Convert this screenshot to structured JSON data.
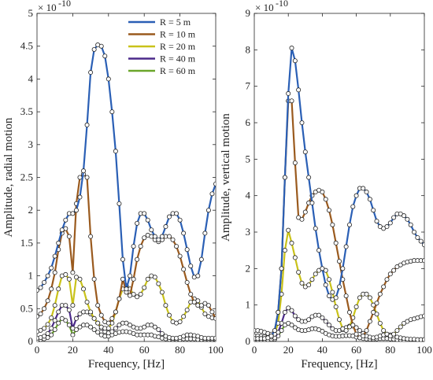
{
  "chart_data": [
    {
      "type": "line",
      "xlabel": "Frequency, [Hz]",
      "ylabel": "Amplitude, radial motion",
      "scale_label": "× 10",
      "scale_exponent": "-10",
      "xlim": [
        0,
        100
      ],
      "ylim": [
        0,
        5
      ],
      "xticks": [
        0,
        20,
        40,
        60,
        80,
        100
      ],
      "yticks": [
        0,
        0.5,
        1,
        1.5,
        2,
        2.5,
        3,
        3.5,
        4,
        4.5,
        5
      ],
      "ytick_labels": [
        "0",
        "0.5",
        "1",
        "1.5",
        "2",
        "2.5",
        "3",
        "3.5",
        "4",
        "4.5",
        "5"
      ],
      "legend_position": "top-right",
      "series": [
        {
          "name": "R = 5 m",
          "color": "#2a5fb5",
          "x": [
            0,
            2,
            4,
            6,
            8,
            10,
            12,
            14,
            16,
            18,
            20,
            22,
            24,
            26,
            28,
            30,
            32,
            34,
            36,
            38,
            40,
            42,
            44,
            46,
            48,
            50,
            52,
            54,
            56,
            58,
            60,
            62,
            64,
            66,
            68,
            70,
            72,
            74,
            76,
            78,
            80,
            82,
            84,
            86,
            88,
            90,
            92,
            94,
            96,
            98,
            100
          ],
          "y": [
            0.78,
            0.82,
            0.9,
            1.0,
            1.12,
            1.3,
            1.5,
            1.7,
            1.85,
            1.95,
            1.95,
            2.0,
            2.2,
            2.6,
            3.3,
            4.1,
            4.45,
            4.52,
            4.5,
            4.35,
            4.0,
            3.5,
            2.9,
            2.1,
            1.25,
            0.8,
            1.0,
            1.45,
            1.8,
            1.95,
            1.95,
            1.85,
            1.7,
            1.6,
            1.55,
            1.6,
            1.75,
            1.9,
            1.95,
            1.95,
            1.85,
            1.65,
            1.4,
            1.15,
            0.98,
            1.0,
            1.25,
            1.65,
            2.0,
            2.25,
            2.4
          ]
        },
        {
          "name": "R = 10 m",
          "color": "#9a5a1e",
          "x": [
            0,
            2,
            4,
            6,
            8,
            10,
            12,
            14,
            16,
            18,
            20,
            22,
            24,
            26,
            28,
            30,
            32,
            34,
            36,
            38,
            40,
            42,
            44,
            46,
            48,
            50,
            52,
            54,
            56,
            58,
            60,
            62,
            64,
            66,
            68,
            70,
            72,
            74,
            76,
            78,
            80,
            82,
            84,
            86,
            88,
            90,
            92,
            94,
            96,
            98,
            100
          ],
          "y": [
            0.38,
            0.42,
            0.5,
            0.62,
            0.8,
            1.05,
            1.4,
            1.65,
            1.72,
            1.6,
            1.05,
            2.1,
            2.5,
            2.55,
            2.5,
            1.6,
            0.95,
            0.55,
            0.4,
            0.3,
            0.28,
            0.35,
            0.45,
            0.65,
            0.95,
            0.75,
            0.7,
            0.95,
            1.25,
            1.45,
            1.58,
            1.62,
            1.6,
            1.55,
            1.52,
            1.55,
            1.6,
            1.6,
            1.55,
            1.45,
            1.3,
            1.1,
            0.9,
            0.72,
            0.6,
            0.55,
            0.55,
            0.58,
            0.55,
            0.45,
            0.35
          ]
        },
        {
          "name": "R = 20 m",
          "color": "#c9c21a",
          "x": [
            0,
            2,
            4,
            6,
            8,
            10,
            12,
            14,
            16,
            18,
            20,
            22,
            24,
            26,
            28,
            30,
            32,
            34,
            36,
            38,
            40,
            42,
            44,
            46,
            48,
            50,
            52,
            54,
            56,
            58,
            60,
            62,
            64,
            66,
            68,
            70,
            72,
            74,
            76,
            78,
            80,
            82,
            84,
            86,
            88,
            90,
            92,
            94,
            96,
            98,
            100
          ],
          "y": [
            0.15,
            0.17,
            0.2,
            0.26,
            0.36,
            0.55,
            0.8,
            1.0,
            1.02,
            0.95,
            0.55,
            0.98,
            0.95,
            0.8,
            0.6,
            0.45,
            0.35,
            0.28,
            0.22,
            0.2,
            0.2,
            0.28,
            0.45,
            0.65,
            0.8,
            0.85,
            0.8,
            0.72,
            0.68,
            0.72,
            0.82,
            0.95,
            1.0,
            0.98,
            0.88,
            0.75,
            0.55,
            0.4,
            0.3,
            0.28,
            0.3,
            0.38,
            0.48,
            0.6,
            0.65,
            0.62,
            0.52,
            0.42,
            0.38,
            0.36,
            0.38
          ]
        },
        {
          "name": "R = 40 m",
          "color": "#4b2a8a",
          "x": [
            0,
            2,
            4,
            6,
            8,
            10,
            12,
            14,
            16,
            18,
            20,
            22,
            24,
            26,
            28,
            30,
            32,
            34,
            36,
            38,
            40,
            42,
            44,
            46,
            48,
            50,
            52,
            54,
            56,
            58,
            60,
            62,
            64,
            66,
            68,
            70,
            72,
            74,
            76,
            78,
            80,
            82,
            84,
            86,
            88,
            90,
            92,
            94,
            96,
            98,
            100
          ],
          "y": [
            0.05,
            0.06,
            0.08,
            0.12,
            0.2,
            0.32,
            0.45,
            0.55,
            0.55,
            0.48,
            0.2,
            0.35,
            0.42,
            0.45,
            0.45,
            0.42,
            0.35,
            0.28,
            0.2,
            0.15,
            0.13,
            0.15,
            0.2,
            0.25,
            0.28,
            0.28,
            0.25,
            0.22,
            0.2,
            0.2,
            0.22,
            0.25,
            0.25,
            0.22,
            0.18,
            0.12,
            0.08,
            0.06,
            0.05,
            0.05,
            0.06,
            0.08,
            0.1,
            0.1,
            0.09,
            0.08,
            0.06,
            0.05,
            0.05,
            0.05,
            0.05
          ]
        },
        {
          "name": "R = 60 m",
          "color": "#6aa62a",
          "x": [
            0,
            2,
            4,
            6,
            8,
            10,
            12,
            14,
            16,
            18,
            20,
            22,
            24,
            26,
            28,
            30,
            32,
            34,
            36,
            38,
            40,
            42,
            44,
            46,
            48,
            50,
            52,
            54,
            56,
            58,
            60,
            62,
            64,
            66,
            68,
            70,
            72,
            74,
            76,
            78,
            80,
            82,
            84,
            86,
            88,
            90,
            92,
            94,
            96,
            98,
            100
          ],
          "y": [
            0.02,
            0.03,
            0.04,
            0.06,
            0.1,
            0.18,
            0.28,
            0.35,
            0.32,
            0.25,
            0.1,
            0.18,
            0.22,
            0.25,
            0.25,
            0.22,
            0.18,
            0.14,
            0.1,
            0.08,
            0.08,
            0.1,
            0.12,
            0.14,
            0.15,
            0.15,
            0.14,
            0.12,
            0.1,
            0.1,
            0.1,
            0.1,
            0.1,
            0.08,
            0.07,
            0.05,
            0.04,
            0.03,
            0.03,
            0.03,
            0.03,
            0.04,
            0.04,
            0.04,
            0.04,
            0.03,
            0.03,
            0.03,
            0.03,
            0.03,
            0.03
          ]
        }
      ]
    },
    {
      "type": "line",
      "xlabel": "Frequency, [Hz]",
      "ylabel": "Amplitude, vertical motion",
      "scale_label": "× 10",
      "scale_exponent": "-10",
      "xlim": [
        0,
        100
      ],
      "ylim": [
        0,
        9
      ],
      "xticks": [
        0,
        20,
        40,
        60,
        80,
        100
      ],
      "yticks": [
        0,
        1,
        2,
        3,
        4,
        5,
        6,
        7,
        8,
        9
      ],
      "ytick_labels": [
        "0",
        "1",
        "2",
        "3",
        "4",
        "5",
        "6",
        "7",
        "8",
        "9"
      ],
      "series": [
        {
          "name": "R = 5 m",
          "color": "#2a5fb5",
          "x": [
            0,
            2,
            4,
            6,
            8,
            10,
            12,
            14,
            16,
            18,
            20,
            22,
            24,
            26,
            28,
            30,
            32,
            34,
            36,
            38,
            40,
            42,
            44,
            46,
            48,
            50,
            52,
            54,
            56,
            58,
            60,
            62,
            64,
            66,
            68,
            70,
            72,
            74,
            76,
            78,
            80,
            82,
            84,
            86,
            88,
            90,
            92,
            94,
            96,
            98,
            100
          ],
          "y": [
            0.08,
            0.08,
            0.08,
            0.08,
            0.1,
            0.15,
            0.3,
            0.8,
            2.0,
            4.5,
            6.8,
            8.05,
            7.7,
            6.9,
            6.0,
            5.2,
            4.5,
            3.8,
            3.1,
            2.5,
            2.0,
            1.55,
            1.25,
            1.15,
            1.2,
            1.5,
            2.0,
            2.6,
            3.2,
            3.7,
            4.0,
            4.2,
            4.2,
            4.1,
            3.9,
            3.6,
            3.3,
            3.15,
            3.1,
            3.15,
            3.25,
            3.4,
            3.5,
            3.5,
            3.45,
            3.35,
            3.2,
            3.0,
            2.85,
            2.75,
            2.65
          ]
        },
        {
          "name": "R = 10 m",
          "color": "#9a5a1e",
          "x": [
            0,
            2,
            4,
            6,
            8,
            10,
            12,
            14,
            16,
            18,
            20,
            22,
            24,
            26,
            28,
            30,
            32,
            34,
            36,
            38,
            40,
            42,
            44,
            46,
            48,
            50,
            52,
            54,
            56,
            58,
            60,
            62,
            64,
            66,
            68,
            70,
            72,
            74,
            76,
            78,
            80,
            82,
            84,
            86,
            88,
            90,
            92,
            94,
            96,
            98,
            100
          ],
          "y": [
            0.3,
            0.3,
            0.28,
            0.25,
            0.22,
            0.2,
            0.3,
            0.8,
            2.0,
            4.5,
            6.6,
            6.6,
            4.9,
            3.4,
            3.35,
            3.55,
            3.8,
            4.0,
            4.1,
            4.15,
            4.1,
            3.9,
            3.6,
            3.2,
            2.7,
            2.2,
            1.7,
            1.25,
            0.8,
            0.45,
            0.2,
            0.1,
            0.15,
            0.3,
            0.55,
            0.8,
            1.05,
            1.3,
            1.5,
            1.7,
            1.85,
            1.95,
            2.05,
            2.1,
            2.15,
            2.18,
            2.2,
            2.22,
            2.22,
            2.22,
            2.22
          ]
        },
        {
          "name": "R = 20 m",
          "color": "#c9c21a",
          "x": [
            0,
            2,
            4,
            6,
            8,
            10,
            12,
            14,
            16,
            18,
            20,
            22,
            24,
            26,
            28,
            30,
            32,
            34,
            36,
            38,
            40,
            42,
            44,
            46,
            48,
            50,
            52,
            54,
            56,
            58,
            60,
            62,
            64,
            66,
            68,
            70,
            72,
            74,
            76,
            78,
            80,
            82,
            84,
            86,
            88,
            90,
            92,
            94,
            96,
            98,
            100
          ],
          "y": [
            0.15,
            0.15,
            0.14,
            0.13,
            0.12,
            0.12,
            0.2,
            0.5,
            1.3,
            2.5,
            3.05,
            2.7,
            2.3,
            1.9,
            1.6,
            1.5,
            1.55,
            1.7,
            1.85,
            1.95,
            2.0,
            1.95,
            1.7,
            1.35,
            0.95,
            0.6,
            0.35,
            0.3,
            0.4,
            0.65,
            0.95,
            1.2,
            1.3,
            1.3,
            1.2,
            1.0,
            0.75,
            0.5,
            0.3,
            0.2,
            0.15,
            0.2,
            0.3,
            0.4,
            0.5,
            0.55,
            0.6,
            0.62,
            0.65,
            0.68,
            0.7
          ]
        },
        {
          "name": "R = 40 m",
          "color": "#4b2a8a",
          "x": [
            0,
            2,
            4,
            6,
            8,
            10,
            12,
            14,
            16,
            18,
            20,
            22,
            24,
            26,
            28,
            30,
            32,
            34,
            36,
            38,
            40,
            42,
            44,
            46,
            48,
            50,
            52,
            54,
            56,
            58,
            60,
            62,
            64,
            66,
            68,
            70,
            72,
            74,
            76,
            78,
            80,
            82,
            84,
            86,
            88,
            90,
            92,
            94,
            96,
            98,
            100
          ],
          "y": [
            0.05,
            0.05,
            0.05,
            0.05,
            0.05,
            0.06,
            0.1,
            0.25,
            0.5,
            0.8,
            0.92,
            0.85,
            0.7,
            0.6,
            0.55,
            0.55,
            0.6,
            0.68,
            0.72,
            0.72,
            0.65,
            0.55,
            0.45,
            0.35,
            0.3,
            0.3,
            0.32,
            0.38,
            0.42,
            0.42,
            0.38,
            0.3,
            0.22,
            0.15,
            0.12,
            0.1,
            0.12,
            0.15,
            0.18,
            0.2,
            0.18,
            0.15,
            0.12,
            0.1,
            0.08,
            0.07,
            0.06,
            0.06,
            0.05,
            0.05,
            0.05
          ]
        },
        {
          "name": "R = 60 m",
          "color": "#6aa62a",
          "x": [
            0,
            2,
            4,
            6,
            8,
            10,
            12,
            14,
            16,
            18,
            20,
            22,
            24,
            26,
            28,
            30,
            32,
            34,
            36,
            38,
            40,
            42,
            44,
            46,
            48,
            50,
            52,
            54,
            56,
            58,
            60,
            62,
            64,
            66,
            68,
            70,
            72,
            74,
            76,
            78,
            80,
            82,
            84,
            86,
            88,
            90,
            92,
            94,
            96,
            98,
            100
          ],
          "y": [
            0.02,
            0.02,
            0.02,
            0.02,
            0.02,
            0.03,
            0.06,
            0.15,
            0.3,
            0.45,
            0.5,
            0.45,
            0.38,
            0.32,
            0.3,
            0.3,
            0.32,
            0.35,
            0.35,
            0.32,
            0.28,
            0.22,
            0.18,
            0.15,
            0.14,
            0.14,
            0.15,
            0.16,
            0.16,
            0.15,
            0.12,
            0.1,
            0.08,
            0.07,
            0.06,
            0.06,
            0.07,
            0.08,
            0.08,
            0.08,
            0.07,
            0.06,
            0.05,
            0.05,
            0.04,
            0.04,
            0.04,
            0.04,
            0.04,
            0.04,
            0.04
          ]
        }
      ]
    }
  ]
}
